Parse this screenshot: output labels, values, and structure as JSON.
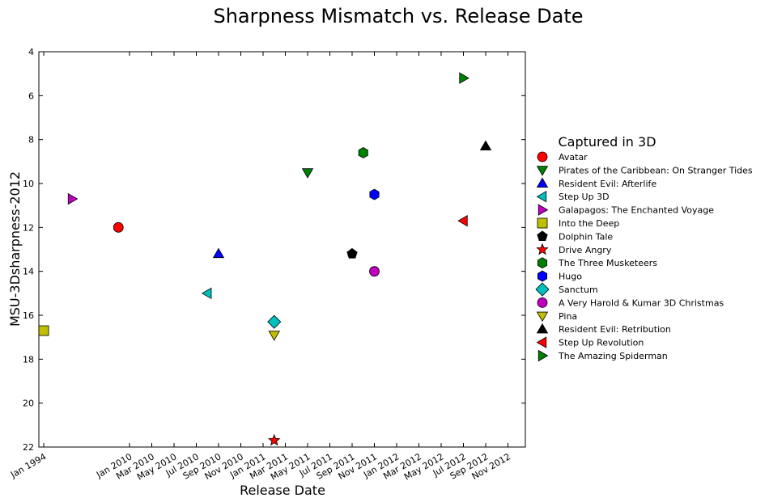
{
  "chart_data": {
    "type": "scatter",
    "title": "Sharpness Mismatch vs. Release Date",
    "xlabel": "Release Date",
    "ylabel": "MSU-3Dsharpness-2012",
    "ylim": [
      22,
      4
    ],
    "y_inverted": true,
    "y_ticks": [
      "4",
      "6",
      "8",
      "10",
      "12",
      "14",
      "16",
      "18",
      "20",
      "22"
    ],
    "x_ticks": [
      "Jan 1994",
      "Jan 2010",
      "Mar 2010",
      "May 2010",
      "Jul 2010",
      "Sep 2010",
      "Nov 2010",
      "Jan 2011",
      "Mar 2011",
      "May 2011",
      "Jul 2011",
      "Sep 2011",
      "Nov 2011",
      "Jan 2012",
      "Mar 2012",
      "May 2012",
      "Jul 2012",
      "Sep 2012",
      "Nov 2012"
    ],
    "grid": false,
    "legend": {
      "title": "Captured in 3D",
      "placement": "right, outside plot"
    },
    "series": [
      {
        "name": "Avatar",
        "x": "2009-12",
        "y": 12.0,
        "marker": "circle",
        "color": "#ff0000"
      },
      {
        "name": "Pirates of the Caribbean: On Stranger Tides",
        "x": "2011-05",
        "y": 9.5,
        "marker": "triangle-down",
        "color": "#008000"
      },
      {
        "name": "Resident Evil: Afterlife",
        "x": "2010-09",
        "y": 13.2,
        "marker": "triangle-up",
        "color": "#0000ff"
      },
      {
        "name": "Step Up 3D",
        "x": "2010-08",
        "y": 15.0,
        "marker": "triangle-left",
        "color": "#00bfbf"
      },
      {
        "name": "Galapagos: The Enchanted Voyage",
        "x": "1999",
        "y": 10.7,
        "marker": "triangle-right",
        "color": "#bf00bf"
      },
      {
        "name": "Into the Deep",
        "x": "1994-01",
        "y": 16.7,
        "marker": "square",
        "color": "#bfbf00"
      },
      {
        "name": "Dolphin Tale",
        "x": "2011-09",
        "y": 13.2,
        "marker": "pentagon",
        "color": "#000000"
      },
      {
        "name": "Drive Angry",
        "x": "2011-02",
        "y": 21.7,
        "marker": "star",
        "color": "#ff0000"
      },
      {
        "name": "The Three Musketeers",
        "x": "2011-10",
        "y": 8.6,
        "marker": "hexagon",
        "color": "#008000"
      },
      {
        "name": "Hugo",
        "x": "2011-11",
        "y": 10.5,
        "marker": "hexagon",
        "color": "#0000ff"
      },
      {
        "name": "Sanctum",
        "x": "2011-02",
        "y": 16.3,
        "marker": "diamond",
        "color": "#00bfbf"
      },
      {
        "name": "A Very Harold & Kumar 3D Christmas",
        "x": "2011-11",
        "y": 14.0,
        "marker": "circle",
        "color": "#bf00bf"
      },
      {
        "name": "Pina",
        "x": "2011-02",
        "y": 16.9,
        "marker": "triangle-down",
        "color": "#bfbf00"
      },
      {
        "name": "Resident Evil: Retribution",
        "x": "2012-09",
        "y": 8.3,
        "marker": "triangle-up",
        "color": "#000000"
      },
      {
        "name": "Step Up Revolution",
        "x": "2012-07",
        "y": 11.7,
        "marker": "triangle-left",
        "color": "#ff0000"
      },
      {
        "name": "The Amazing Spiderman",
        "x": "2012-07",
        "y": 5.2,
        "marker": "triangle-right",
        "color": "#008000"
      }
    ]
  }
}
